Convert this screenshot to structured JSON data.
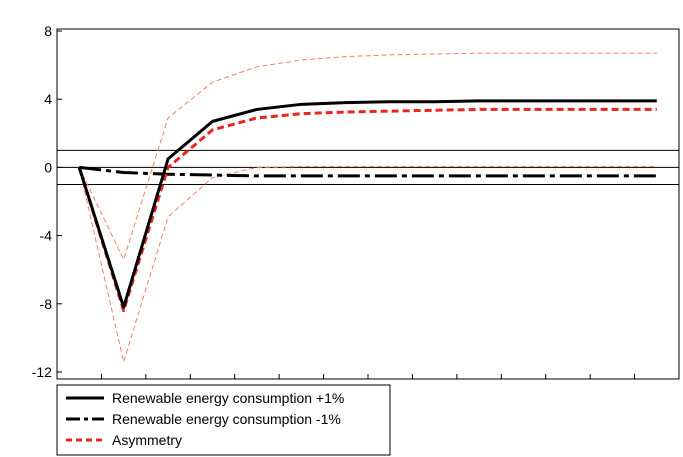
{
  "chart_data": {
    "type": "line",
    "title": "",
    "xlabel": "",
    "ylabel": "",
    "ylim": [
      -12,
      8
    ],
    "yticks": [
      "8",
      "4",
      "0",
      "-4",
      "-8",
      "-12"
    ],
    "ytick_values": [
      8,
      4,
      0,
      -4,
      -8,
      -12
    ],
    "x": [
      0,
      1,
      2,
      3,
      4,
      5,
      6,
      7,
      8,
      9,
      10,
      11,
      12,
      13
    ],
    "xlim": [
      -0.5,
      13.5
    ],
    "grid": false,
    "reference_lines": [
      1,
      0,
      -1
    ],
    "legend_position": "bottom-left",
    "series": [
      {
        "name": "Renewable energy consumption +1%",
        "style": "solid",
        "color": "#000000",
        "values": [
          0,
          -8.2,
          0.5,
          2.7,
          3.4,
          3.7,
          3.8,
          3.85,
          3.85,
          3.9,
          3.9,
          3.9,
          3.9,
          3.9
        ]
      },
      {
        "name": "Renewable energy consumption -1%",
        "style": "long-dash",
        "color": "#000000",
        "values": [
          0,
          -0.3,
          -0.4,
          -0.45,
          -0.5,
          -0.5,
          -0.5,
          -0.5,
          -0.5,
          -0.5,
          -0.5,
          -0.5,
          -0.5,
          -0.5
        ]
      },
      {
        "name": "Asymmetry",
        "style": "short-dash",
        "color": "#e8261e",
        "values": [
          0,
          -8.4,
          0,
          2.2,
          2.9,
          3.15,
          3.25,
          3.3,
          3.35,
          3.4,
          3.4,
          3.4,
          3.4,
          3.4
        ]
      },
      {
        "name": "",
        "style": "thin-dash",
        "color": "#f08060",
        "values": [
          0,
          -5.4,
          2.9,
          5.0,
          5.9,
          6.3,
          6.5,
          6.6,
          6.65,
          6.7,
          6.7,
          6.7,
          6.7,
          6.7
        ]
      },
      {
        "name": "",
        "style": "thin-dash",
        "color": "#f08060",
        "values": [
          0,
          -11.4,
          -2.9,
          -0.6,
          0,
          0.05,
          0.05,
          0.05,
          0.05,
          0.05,
          0.05,
          0.05,
          0.05,
          0.05
        ]
      }
    ]
  }
}
